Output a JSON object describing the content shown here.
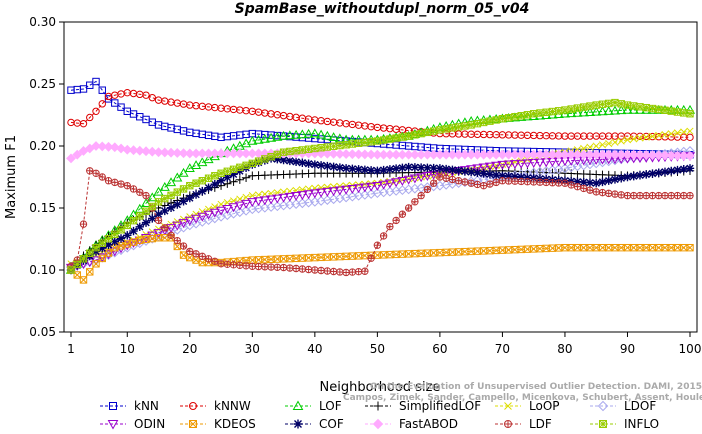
{
  "chart_data": {
    "type": "line",
    "title": "SpamBase_withoutdupl_norm_05_v04",
    "xlabel": "Neighborhood size",
    "ylabel": "Maximum F1",
    "xlim": [
      0,
      100
    ],
    "ylim": [
      0.05,
      0.3
    ],
    "xticks": [
      1,
      10,
      20,
      30,
      40,
      50,
      60,
      70,
      80,
      90,
      100
    ],
    "yticks": [
      0.05,
      0.1,
      0.15,
      0.2,
      0.25,
      0.3
    ],
    "ytick_labels": [
      "0.05",
      "0.10",
      "0.15",
      "0.20",
      "0.25",
      "0.30"
    ],
    "grid": false,
    "legend_position": "bottom",
    "credit_lines": [
      "Campos, Zimek, Sander, Campello, Micenkova, Schubert, Assent, Houle",
      "On the Evaluation of Unsupervised Outlier Detection. DAMI, 2015."
    ],
    "series": [
      {
        "name": "kNN",
        "color": "#0000cc",
        "marker": "square",
        "anchors": [
          [
            1,
            0.245
          ],
          [
            3,
            0.246
          ],
          [
            5,
            0.252
          ],
          [
            7,
            0.238
          ],
          [
            10,
            0.228
          ],
          [
            15,
            0.217
          ],
          [
            20,
            0.211
          ],
          [
            25,
            0.207
          ],
          [
            30,
            0.21
          ],
          [
            40,
            0.206
          ],
          [
            50,
            0.202
          ],
          [
            60,
            0.198
          ],
          [
            70,
            0.196
          ],
          [
            80,
            0.195
          ],
          [
            90,
            0.194
          ],
          [
            100,
            0.193
          ]
        ]
      },
      {
        "name": "kNNW",
        "color": "#dd0000",
        "marker": "circle",
        "anchors": [
          [
            1,
            0.219
          ],
          [
            3,
            0.218
          ],
          [
            5,
            0.228
          ],
          [
            7,
            0.24
          ],
          [
            10,
            0.243
          ],
          [
            13,
            0.241
          ],
          [
            15,
            0.237
          ],
          [
            20,
            0.233
          ],
          [
            30,
            0.228
          ],
          [
            40,
            0.221
          ],
          [
            50,
            0.215
          ],
          [
            60,
            0.21
          ],
          [
            70,
            0.209
          ],
          [
            80,
            0.208
          ],
          [
            90,
            0.208
          ],
          [
            100,
            0.207
          ]
        ]
      },
      {
        "name": "LOF",
        "color": "#00cc00",
        "marker": "triangle-up",
        "anchors": [
          [
            1,
            0.1
          ],
          [
            5,
            0.12
          ],
          [
            10,
            0.14
          ],
          [
            15,
            0.163
          ],
          [
            20,
            0.182
          ],
          [
            25,
            0.194
          ],
          [
            30,
            0.204
          ],
          [
            35,
            0.208
          ],
          [
            40,
            0.21
          ],
          [
            45,
            0.205
          ],
          [
            50,
            0.205
          ],
          [
            55,
            0.208
          ],
          [
            60,
            0.215
          ],
          [
            65,
            0.22
          ],
          [
            70,
            0.222
          ],
          [
            80,
            0.226
          ],
          [
            90,
            0.229
          ],
          [
            100,
            0.229
          ]
        ]
      },
      {
        "name": "SimplifiedLOF",
        "color": "#000000",
        "marker": "plus",
        "anchors": [
          [
            1,
            0.103
          ],
          [
            5,
            0.12
          ],
          [
            10,
            0.138
          ],
          [
            15,
            0.15
          ],
          [
            20,
            0.16
          ],
          [
            25,
            0.168
          ],
          [
            30,
            0.176
          ],
          [
            40,
            0.178
          ],
          [
            50,
            0.178
          ],
          [
            60,
            0.179
          ],
          [
            70,
            0.18
          ],
          [
            80,
            0.178
          ],
          [
            90,
            0.176
          ],
          [
            100,
            0.18
          ]
        ]
      },
      {
        "name": "LoOP",
        "color": "#dddd00",
        "marker": "x",
        "anchors": [
          [
            1,
            0.105
          ],
          [
            5,
            0.112
          ],
          [
            10,
            0.122
          ],
          [
            15,
            0.133
          ],
          [
            20,
            0.143
          ],
          [
            25,
            0.153
          ],
          [
            30,
            0.16
          ],
          [
            40,
            0.166
          ],
          [
            50,
            0.17
          ],
          [
            60,
            0.177
          ],
          [
            70,
            0.185
          ],
          [
            80,
            0.195
          ],
          [
            90,
            0.205
          ],
          [
            100,
            0.212
          ]
        ]
      },
      {
        "name": "LDOF",
        "color": "#aaaaee",
        "marker": "diamond",
        "anchors": [
          [
            1,
            0.102
          ],
          [
            5,
            0.108
          ],
          [
            10,
            0.118
          ],
          [
            15,
            0.127
          ],
          [
            20,
            0.136
          ],
          [
            25,
            0.143
          ],
          [
            30,
            0.149
          ],
          [
            40,
            0.155
          ],
          [
            50,
            0.162
          ],
          [
            60,
            0.168
          ],
          [
            70,
            0.175
          ],
          [
            80,
            0.182
          ],
          [
            90,
            0.19
          ],
          [
            100,
            0.196
          ]
        ]
      },
      {
        "name": "ODIN",
        "color": "#9900cc",
        "marker": "triangle-down",
        "anchors": [
          [
            1,
            0.102
          ],
          [
            5,
            0.108
          ],
          [
            10,
            0.12
          ],
          [
            15,
            0.13
          ],
          [
            20,
            0.14
          ],
          [
            25,
            0.148
          ],
          [
            30,
            0.155
          ],
          [
            40,
            0.162
          ],
          [
            50,
            0.168
          ],
          [
            60,
            0.178
          ],
          [
            70,
            0.185
          ],
          [
            80,
            0.188
          ],
          [
            90,
            0.19
          ],
          [
            100,
            0.192
          ]
        ]
      },
      {
        "name": "KDEOS",
        "color": "#ee9900",
        "marker": "square-x",
        "anchors": [
          [
            1,
            0.1
          ],
          [
            3,
            0.092
          ],
          [
            5,
            0.105
          ],
          [
            8,
            0.118
          ],
          [
            12,
            0.124
          ],
          [
            15,
            0.126
          ],
          [
            17,
            0.126
          ],
          [
            19,
            0.112
          ],
          [
            20,
            0.11
          ],
          [
            22,
            0.106
          ],
          [
            25,
            0.106
          ],
          [
            30,
            0.108
          ],
          [
            40,
            0.11
          ],
          [
            50,
            0.112
          ],
          [
            60,
            0.114
          ],
          [
            70,
            0.116
          ],
          [
            80,
            0.118
          ],
          [
            90,
            0.118
          ],
          [
            100,
            0.118
          ]
        ]
      },
      {
        "name": "COF",
        "color": "#000066",
        "marker": "asterisk",
        "anchors": [
          [
            1,
            0.1
          ],
          [
            5,
            0.115
          ],
          [
            10,
            0.128
          ],
          [
            15,
            0.145
          ],
          [
            20,
            0.158
          ],
          [
            25,
            0.172
          ],
          [
            30,
            0.185
          ],
          [
            33,
            0.19
          ],
          [
            36,
            0.188
          ],
          [
            40,
            0.185
          ],
          [
            45,
            0.182
          ],
          [
            50,
            0.18
          ],
          [
            55,
            0.183
          ],
          [
            60,
            0.182
          ],
          [
            70,
            0.176
          ],
          [
            80,
            0.172
          ],
          [
            85,
            0.17
          ],
          [
            90,
            0.175
          ],
          [
            100,
            0.182
          ]
        ]
      },
      {
        "name": "FastABOD",
        "color": "#ffaaff",
        "marker": "diamond-filled",
        "anchors": [
          [
            1,
            0.19
          ],
          [
            3,
            0.196
          ],
          [
            5,
            0.2
          ],
          [
            8,
            0.199
          ],
          [
            10,
            0.197
          ],
          [
            15,
            0.195
          ],
          [
            20,
            0.194
          ],
          [
            30,
            0.194
          ],
          [
            40,
            0.194
          ],
          [
            50,
            0.193
          ],
          [
            60,
            0.193
          ],
          [
            70,
            0.193
          ],
          [
            80,
            0.193
          ],
          [
            90,
            0.193
          ],
          [
            100,
            0.192
          ]
        ]
      },
      {
        "name": "LDF",
        "color": "#bb3333",
        "marker": "circle-plus",
        "anchors": [
          [
            1,
            0.103
          ],
          [
            2,
            0.108
          ],
          [
            3,
            0.137
          ],
          [
            4,
            0.18
          ],
          [
            5,
            0.178
          ],
          [
            7,
            0.172
          ],
          [
            10,
            0.168
          ],
          [
            13,
            0.16
          ],
          [
            15,
            0.14
          ],
          [
            17,
            0.128
          ],
          [
            20,
            0.115
          ],
          [
            25,
            0.105
          ],
          [
            30,
            0.103
          ],
          [
            35,
            0.102
          ],
          [
            40,
            0.1
          ],
          [
            45,
            0.098
          ],
          [
            48,
            0.099
          ],
          [
            50,
            0.12
          ],
          [
            52,
            0.135
          ],
          [
            55,
            0.15
          ],
          [
            58,
            0.165
          ],
          [
            60,
            0.175
          ],
          [
            63,
            0.172
          ],
          [
            67,
            0.168
          ],
          [
            70,
            0.172
          ],
          [
            80,
            0.17
          ],
          [
            85,
            0.163
          ],
          [
            90,
            0.16
          ],
          [
            100,
            0.16
          ]
        ]
      },
      {
        "name": "INFLO",
        "color": "#99cc00",
        "marker": "square-star",
        "anchors": [
          [
            1,
            0.1
          ],
          [
            5,
            0.118
          ],
          [
            10,
            0.136
          ],
          [
            15,
            0.155
          ],
          [
            20,
            0.168
          ],
          [
            25,
            0.178
          ],
          [
            30,
            0.186
          ],
          [
            35,
            0.195
          ],
          [
            40,
            0.198
          ],
          [
            45,
            0.201
          ],
          [
            50,
            0.204
          ],
          [
            55,
            0.208
          ],
          [
            60,
            0.213
          ],
          [
            65,
            0.217
          ],
          [
            70,
            0.222
          ],
          [
            75,
            0.226
          ],
          [
            80,
            0.229
          ],
          [
            85,
            0.233
          ],
          [
            88,
            0.235
          ],
          [
            90,
            0.233
          ],
          [
            100,
            0.226
          ]
        ]
      }
    ]
  }
}
